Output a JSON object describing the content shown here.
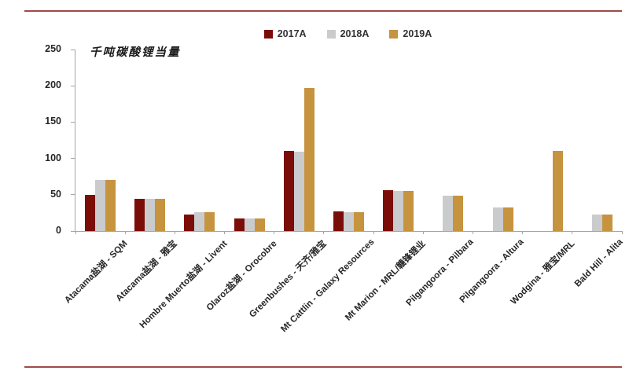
{
  "theme": {
    "background": "#ffffff",
    "accent_line_color": "#A04A46",
    "axis_color": "#A6A6A6",
    "text_color": "#262626"
  },
  "chart_data": {
    "type": "bar",
    "title": "",
    "ylabel": "千吨碳酸锂当量",
    "xlabel": "",
    "ylim": [
      0,
      250
    ],
    "yticks": [
      0,
      50,
      100,
      150,
      200,
      250
    ],
    "grid": false,
    "legend_position": "top",
    "categories": [
      "Atacama盐湖 - SQM",
      "Atacama盐湖 - 雅宝",
      "Hombre Muerto盐湖 - Livent",
      "Olaroz盐湖 - Orocobre",
      "Greenbushes - 天齐/雅宝",
      "Mt Cattlin - Galaxy Resources",
      "Mt Marion - MRL/赣锋锂业",
      "Pilgangoora - Pilbara",
      "Pilgangoora - Altura",
      "Wodgina - 雅宝/MRL",
      "Bald Hill - Alita"
    ],
    "series": [
      {
        "name": "2017A",
        "color": "#7B0D08",
        "values": [
          50,
          44,
          23,
          17,
          110,
          27,
          56,
          null,
          null,
          null,
          null
        ]
      },
      {
        "name": "2018A",
        "color": "#CACBCD",
        "values": [
          70,
          44,
          26,
          17,
          109,
          26,
          55,
          49,
          32,
          null,
          23
        ]
      },
      {
        "name": "2019A",
        "color": "#C6933F",
        "values": [
          70,
          44,
          26,
          17,
          197,
          26,
          55,
          49,
          32,
          110,
          23
        ]
      }
    ]
  }
}
